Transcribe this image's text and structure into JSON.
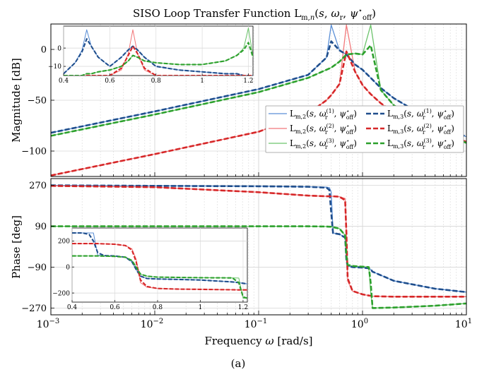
{
  "figure_label": "(a)",
  "chart_data": [
    {
      "type": "line",
      "panel": "magnitude",
      "title": "SISO Loop Transfer Function L_{m,n}(s, ω_r, ψ*_off)",
      "xlabel": "",
      "ylabel": "Magnitude [dB]",
      "xscale": "log",
      "xlim": [
        0.001,
        10
      ],
      "ylim": [
        -125,
        25
      ],
      "yticks": [
        "0",
        "-50",
        "-100"
      ],
      "grid": true,
      "legend_position": "bottom-right",
      "colors": {
        "blue": "#1f4e8c",
        "red": "#d62728",
        "green": "#2ca02c",
        "blue_light": "#5b8fd6",
        "red_light": "#f2787a",
        "green_light": "#6cc36c"
      },
      "x": [
        0.001,
        0.01,
        0.1,
        0.3,
        0.45,
        0.5,
        0.6,
        0.7,
        0.85,
        1.0,
        1.2,
        1.5,
        2.0,
        5.0,
        10.0
      ],
      "series": [
        {
          "name": "L_{m,2}(s, ω_r^(1), ψ*_off)",
          "color": "blue_light",
          "style": "solid",
          "values": [
            -82,
            -61,
            -39,
            -25,
            -8,
            24,
            -1,
            -5,
            -15,
            -20,
            -28,
            -38,
            -48,
            -72,
            -86
          ]
        },
        {
          "name": "L_{m,2}(s, ω_r^(2), ψ*_off)",
          "color": "red_light",
          "style": "solid",
          "values": [
            -124,
            -103,
            -81,
            -63,
            -50,
            -45,
            -34,
            24,
            -22,
            -35,
            -44,
            -53,
            -62,
            -79,
            -91
          ]
        },
        {
          "name": "L_{m,2}(s, ω_r^(3), ψ*_off)",
          "color": "green_light",
          "style": "solid",
          "values": [
            -85,
            -64,
            -42,
            -28,
            -20,
            -18,
            -12,
            -5,
            -4,
            -5,
            24,
            -40,
            -55,
            -78,
            -92
          ]
        },
        {
          "name": "L_{m,3}(s, ω_r^(1), ψ*_off)",
          "color": "blue",
          "style": "dash",
          "values": [
            -82,
            -61,
            -39,
            -25,
            -8,
            8,
            -1,
            -5,
            -15,
            -20,
            -28,
            -38,
            -48,
            -72,
            -86
          ]
        },
        {
          "name": "L_{m,3}(s, ω_r^(2), ψ*_off)",
          "color": "red",
          "style": "dash",
          "values": [
            -124,
            -103,
            -81,
            -63,
            -50,
            -45,
            -34,
            -2,
            -22,
            -35,
            -44,
            -53,
            -62,
            -79,
            -91
          ]
        },
        {
          "name": "L_{m,3}(s, ω_r^(3), ψ*_off)",
          "color": "green",
          "style": "dash",
          "values": [
            -85,
            -64,
            -42,
            -28,
            -20,
            -18,
            -12,
            -5,
            -4,
            -5,
            4,
            -40,
            -55,
            -78,
            -92
          ]
        }
      ]
    },
    {
      "type": "line",
      "panel": "magnitude-inset",
      "xscale": "linear",
      "xlim": [
        0.4,
        1.22
      ],
      "ylim": [
        -15,
        12
      ],
      "xticks": [
        "0.4",
        "0.6",
        "0.8",
        "1",
        "1.2"
      ],
      "yticks": [
        "0",
        "-10"
      ],
      "x": [
        0.4,
        0.45,
        0.48,
        0.5,
        0.52,
        0.55,
        0.6,
        0.65,
        0.68,
        0.7,
        0.72,
        0.75,
        0.8,
        0.9,
        1.0,
        1.1,
        1.15,
        1.18,
        1.2,
        1.22
      ],
      "series": [
        {
          "name": "L_{m,2}(s, ω_r^(1), ψ*_off)",
          "color": "blue_light",
          "style": "solid",
          "values": [
            -14,
            -8,
            -1,
            10,
            1,
            -5,
            -10,
            -5,
            -1,
            1,
            -1,
            -5,
            -10,
            -12,
            -13,
            -14,
            -14,
            -15,
            -15,
            -15
          ]
        },
        {
          "name": "L_{m,2}(s, ω_r^(2), ψ*_off)",
          "color": "red_light",
          "style": "solid",
          "values": [
            -15,
            -15,
            -15,
            -15,
            -15,
            -15,
            -15,
            -12,
            -3,
            10,
            -3,
            -12,
            -15,
            -15,
            -15,
            -15,
            -15,
            -15,
            -15,
            -15
          ]
        },
        {
          "name": "L_{m,2}(s, ω_r^(3), ψ*_off)",
          "color": "green_light",
          "style": "solid",
          "values": [
            -15,
            -15,
            -15,
            -14,
            -14,
            -13,
            -12,
            -10,
            -7,
            -4,
            -5,
            -7,
            -8,
            -9,
            -9,
            -7,
            -4,
            0,
            11,
            -5
          ]
        },
        {
          "name": "L_{m,3}(s, ω_r^(1), ψ*_off)",
          "color": "blue",
          "style": "dash",
          "values": [
            -14,
            -8,
            -2,
            5,
            1,
            -5,
            -10,
            -5,
            -1,
            1,
            -1,
            -5,
            -10,
            -12,
            -13,
            -14,
            -14,
            -15,
            -15,
            -15
          ]
        },
        {
          "name": "L_{m,3}(s, ω_r^(2), ψ*_off)",
          "color": "red",
          "style": "dash",
          "values": [
            -15,
            -15,
            -15,
            -15,
            -15,
            -15,
            -15,
            -11,
            -4,
            1,
            -3,
            -11,
            -15,
            -15,
            -15,
            -15,
            -15,
            -15,
            -15,
            -15
          ]
        },
        {
          "name": "L_{m,3}(s, ω_r^(3), ψ*_off)",
          "color": "green",
          "style": "dash",
          "values": [
            -15,
            -15,
            -15,
            -14,
            -14,
            -13,
            -12,
            -10,
            -7,
            -4,
            -5,
            -7,
            -8,
            -9,
            -9,
            -7,
            -4,
            -1,
            3,
            -5
          ]
        }
      ]
    },
    {
      "type": "line",
      "panel": "phase",
      "xlabel": "Frequency ω [rad/s]",
      "ylabel": "Phase [deg]",
      "xscale": "log",
      "xlim": [
        0.001,
        10
      ],
      "ylim": [
        -300,
        300
      ],
      "xticks": [
        "10^-3",
        "10^-2",
        "10^-1",
        "10^0",
        "10^1"
      ],
      "yticks": [
        "270",
        "90",
        "-90",
        "-270"
      ],
      "grid": true,
      "x": [
        0.001,
        0.01,
        0.1,
        0.3,
        0.45,
        0.48,
        0.5,
        0.52,
        0.6,
        0.68,
        0.7,
        0.72,
        0.8,
        1.0,
        1.15,
        1.2,
        1.25,
        2.0,
        5.0,
        10.0
      ],
      "series": [
        {
          "name": "L_{m,2}(s, ω_r^(1), ψ*_off)",
          "color": "blue_light",
          "style": "solid",
          "values": [
            270,
            268,
            266,
            264,
            262,
            260,
            240,
            60,
            55,
            40,
            -60,
            -85,
            -90,
            -92,
            -95,
            -100,
            -110,
            -150,
            -185,
            -200
          ]
        },
        {
          "name": "L_{m,2}(s, ω_r^(2), ψ*_off)",
          "color": "red_light",
          "style": "solid",
          "values": [
            268,
            262,
            240,
            225,
            222,
            222,
            222,
            222,
            220,
            212,
            60,
            -150,
            -195,
            -210,
            -215,
            -216,
            -218,
            -220,
            -220,
            -220
          ]
        },
        {
          "name": "L_{m,2}(s, ω_r^(3), ψ*_off)",
          "color": "green_light",
          "style": "solid",
          "values": [
            90,
            90,
            90,
            90,
            89,
            88,
            88,
            86,
            80,
            50,
            -40,
            -80,
            -85,
            -88,
            -90,
            -200,
            -270,
            -268,
            -260,
            -250
          ]
        },
        {
          "name": "L_{m,3}(s, ω_r^(1), ψ*_off)",
          "color": "blue",
          "style": "dash",
          "values": [
            270,
            268,
            266,
            264,
            260,
            250,
            150,
            60,
            55,
            40,
            -60,
            -85,
            -90,
            -92,
            -95,
            -100,
            -110,
            -150,
            -185,
            -200
          ]
        },
        {
          "name": "L_{m,3}(s, ω_r^(2), ψ*_off)",
          "color": "red",
          "style": "dash",
          "values": [
            268,
            262,
            240,
            225,
            222,
            222,
            222,
            222,
            220,
            205,
            60,
            -140,
            -195,
            -210,
            -215,
            -216,
            -218,
            -220,
            -220,
            -220
          ]
        },
        {
          "name": "L_{m,3}(s, ω_r^(3), ψ*_off)",
          "color": "green",
          "style": "dash",
          "values": [
            90,
            90,
            90,
            90,
            89,
            88,
            88,
            86,
            80,
            50,
            -40,
            -80,
            -85,
            -88,
            -90,
            -160,
            -270,
            -268,
            -260,
            -250
          ]
        }
      ]
    },
    {
      "type": "line",
      "panel": "phase-inset",
      "xscale": "linear",
      "xlim": [
        0.4,
        1.22
      ],
      "ylim": [
        -270,
        300
      ],
      "xticks": [
        "0.4",
        "0.6",
        "0.8",
        "1",
        "1.2"
      ],
      "yticks": [
        "200",
        "0",
        "-200"
      ],
      "x": [
        0.4,
        0.45,
        0.48,
        0.5,
        0.52,
        0.55,
        0.6,
        0.65,
        0.68,
        0.7,
        0.72,
        0.75,
        0.8,
        0.9,
        1.0,
        1.1,
        1.15,
        1.18,
        1.2,
        1.22
      ],
      "series": [
        {
          "name": "L_{m,2}(s, ω_r^(1), ψ*_off)",
          "color": "blue_light",
          "style": "solid",
          "values": [
            262,
            262,
            262,
            262,
            90,
            88,
            85,
            75,
            40,
            -20,
            -70,
            -88,
            -92,
            -96,
            -100,
            -110,
            -115,
            -120,
            -125,
            -130
          ]
        },
        {
          "name": "L_{m,2}(s, ω_r^(2), ψ*_off)",
          "color": "red_light",
          "style": "solid",
          "values": [
            180,
            180,
            180,
            180,
            180,
            178,
            175,
            165,
            140,
            60,
            -120,
            -155,
            -165,
            -170,
            -172,
            -174,
            -175,
            -176,
            -176,
            -176
          ]
        },
        {
          "name": "L_{m,2}(s, ω_r^(3), ψ*_off)",
          "color": "green_light",
          "style": "solid",
          "values": [
            85,
            85,
            85,
            85,
            85,
            84,
            82,
            75,
            50,
            0,
            -55,
            -70,
            -78,
            -80,
            -82,
            -83,
            -84,
            -85,
            -240,
            -240
          ]
        },
        {
          "name": "L_{m,3}(s, ω_r^(1), ψ*_off)",
          "color": "blue",
          "style": "dash",
          "values": [
            262,
            262,
            250,
            200,
            110,
            88,
            85,
            75,
            40,
            -20,
            -70,
            -88,
            -92,
            -96,
            -100,
            -110,
            -115,
            -120,
            -125,
            -130
          ]
        },
        {
          "name": "L_{m,3}(s, ω_r^(2), ψ*_off)",
          "color": "red",
          "style": "dash",
          "values": [
            180,
            180,
            180,
            180,
            180,
            178,
            175,
            165,
            130,
            40,
            -100,
            -150,
            -165,
            -170,
            -172,
            -174,
            -175,
            -176,
            -176,
            -176
          ]
        },
        {
          "name": "L_{m,3}(s, ω_r^(3), ψ*_off)",
          "color": "green",
          "style": "dash",
          "values": [
            85,
            85,
            85,
            85,
            85,
            84,
            82,
            75,
            50,
            0,
            -55,
            -70,
            -78,
            -80,
            -82,
            -83,
            -84,
            -120,
            -230,
            -240
          ]
        }
      ]
    }
  ]
}
